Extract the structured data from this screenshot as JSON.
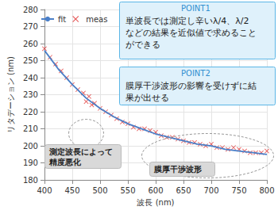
{
  "chart_data": {
    "type": "line",
    "x_label": "波長 (nm)",
    "y_label": "リタデーション (nm)",
    "xlim": [
      400,
      800
    ],
    "xticks": [
      400,
      450,
      500,
      550,
      600,
      650,
      700,
      750,
      800
    ],
    "ylim": [
      180,
      280
    ],
    "yticks": [
      180,
      190,
      200,
      210,
      220,
      230,
      240,
      250,
      260,
      270,
      280
    ],
    "grid": true,
    "legend": "upper left",
    "series": [
      {
        "name": "fit",
        "type": "line",
        "color": "#4a7fc8",
        "marker": "none",
        "line_style": "solid",
        "x": [
          400,
          425,
          450,
          475,
          500,
          525,
          550,
          575,
          600,
          625,
          650,
          675,
          700,
          725,
          750,
          775,
          800
        ],
        "values": [
          256,
          245,
          236,
          228,
          222,
          217,
          213,
          210,
          207,
          205,
          203,
          201,
          200,
          198,
          197,
          196,
          195
        ]
      },
      {
        "name": "meas",
        "type": "scatter",
        "color": "#e03030",
        "marker": "x",
        "x": [
          400,
          410,
          420,
          430,
          440,
          450,
          460,
          470,
          475,
          480,
          485,
          490,
          500,
          510,
          520,
          530,
          540,
          550,
          560,
          570,
          580,
          590,
          600,
          610,
          620,
          630,
          640,
          650,
          660,
          670,
          680,
          690,
          700,
          710,
          720,
          730,
          740,
          750,
          760,
          770,
          780,
          790,
          800
        ],
        "values": [
          257,
          252,
          248,
          244,
          240,
          236,
          233,
          231,
          226,
          229,
          224,
          225,
          222,
          220,
          218,
          216,
          214,
          213,
          211,
          210,
          210,
          209,
          208,
          206,
          205,
          205,
          204,
          203,
          202,
          202,
          201,
          200,
          201,
          199,
          199,
          198,
          199,
          198,
          197,
          196,
          196,
          196,
          197
        ]
      }
    ],
    "annotations": [
      {
        "title": "POINT1",
        "lines": [
          "単波長では測定し辛いλ/4、λ/2",
          "などの結果を近似値で求めること",
          "ができる"
        ]
      },
      {
        "title": "POINT2",
        "lines": [
          "膜厚干渉波形の影響を受けずに結",
          "果が出せる"
        ]
      },
      {
        "lines": [
          "測定波長によって",
          "精度悪化"
        ]
      },
      {
        "lines": [
          "膜厚干渉波形"
        ]
      }
    ]
  }
}
